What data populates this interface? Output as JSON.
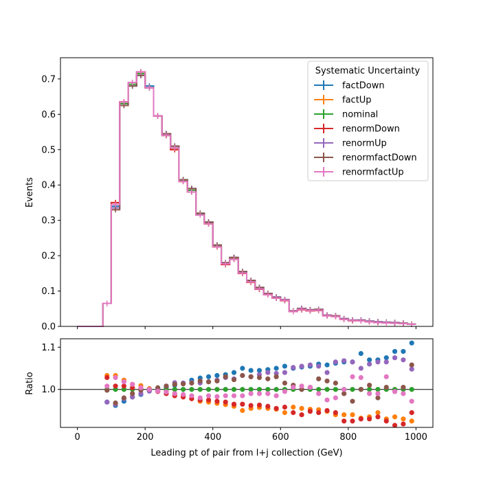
{
  "chart_data": [
    {
      "type": "line",
      "drawstyle": "steps",
      "xlim": [
        -50,
        1050
      ],
      "ylim": [
        0,
        0.76
      ],
      "ylabel": "Events",
      "yticks": [
        0.0,
        0.1,
        0.2,
        0.3,
        0.4,
        0.5,
        0.6,
        0.7
      ],
      "ytick_labels": [
        "0.0",
        "0.1",
        "0.2",
        "0.3",
        "0.4",
        "0.5",
        "0.6",
        "0.7"
      ],
      "xticks": [
        0,
        200,
        400,
        600,
        800,
        1000
      ],
      "x_edges": [
        0,
        25,
        50,
        75,
        100,
        125,
        150,
        175,
        200,
        225,
        250,
        275,
        300,
        325,
        350,
        375,
        400,
        425,
        450,
        475,
        500,
        525,
        550,
        575,
        600,
        625,
        650,
        675,
        700,
        725,
        750,
        775,
        800,
        825,
        850,
        875,
        900,
        925,
        950,
        975,
        1000
      ],
      "legend": {
        "title": "Systematic Uncertainty",
        "placement": "top-right",
        "entries": [
          "factDown",
          "factUp",
          "nominal",
          "renormDown",
          "renormUp",
          "renormfactDown",
          "renormfactUp"
        ]
      },
      "series": [
        {
          "name": "factDown",
          "color": "#1f77b4",
          "values": [
            0,
            0,
            0,
            0.065,
            0.34,
            0.63,
            0.68,
            0.71,
            0.68,
            0.595,
            0.545,
            0.51,
            0.415,
            0.39,
            0.32,
            0.295,
            0.23,
            0.18,
            0.195,
            0.155,
            0.13,
            0.11,
            0.093,
            0.083,
            0.075,
            0.043,
            0.05,
            0.047,
            0.048,
            0.032,
            0.03,
            0.022,
            0.018,
            0.018,
            0.015,
            0.013,
            0.012,
            0.011,
            0.009,
            0.006
          ]
        },
        {
          "name": "factUp",
          "color": "#ff7f0e",
          "values": [
            0,
            0,
            0,
            0.065,
            0.35,
            0.635,
            0.69,
            0.72,
            0.675,
            0.595,
            0.54,
            0.5,
            0.41,
            0.38,
            0.315,
            0.29,
            0.225,
            0.175,
            0.19,
            0.15,
            0.125,
            0.105,
            0.09,
            0.08,
            0.074,
            0.043,
            0.048,
            0.045,
            0.046,
            0.031,
            0.028,
            0.021,
            0.017,
            0.017,
            0.014,
            0.012,
            0.011,
            0.01,
            0.008,
            0.006
          ]
        },
        {
          "name": "nominal",
          "color": "#2ca02c",
          "values": [
            0,
            0,
            0,
            0.065,
            0.345,
            0.63,
            0.685,
            0.715,
            0.675,
            0.595,
            0.54,
            0.505,
            0.412,
            0.385,
            0.318,
            0.292,
            0.228,
            0.178,
            0.192,
            0.152,
            0.127,
            0.107,
            0.091,
            0.081,
            0.075,
            0.043,
            0.049,
            0.046,
            0.047,
            0.031,
            0.029,
            0.021,
            0.017,
            0.017,
            0.014,
            0.012,
            0.011,
            0.01,
            0.009,
            0.006
          ]
        },
        {
          "name": "renormDown",
          "color": "#d62728",
          "values": [
            0,
            0,
            0,
            0.065,
            0.35,
            0.635,
            0.69,
            0.72,
            0.675,
            0.595,
            0.54,
            0.5,
            0.41,
            0.38,
            0.315,
            0.29,
            0.225,
            0.175,
            0.19,
            0.15,
            0.125,
            0.105,
            0.09,
            0.08,
            0.073,
            0.042,
            0.047,
            0.044,
            0.045,
            0.03,
            0.028,
            0.02,
            0.016,
            0.016,
            0.013,
            0.011,
            0.01,
            0.009,
            0.008,
            0.006
          ]
        },
        {
          "name": "renormUp",
          "color": "#9467bd",
          "values": [
            0,
            0,
            0,
            0.065,
            0.335,
            0.625,
            0.68,
            0.71,
            0.675,
            0.595,
            0.545,
            0.51,
            0.415,
            0.39,
            0.32,
            0.295,
            0.23,
            0.18,
            0.195,
            0.155,
            0.13,
            0.11,
            0.093,
            0.083,
            0.076,
            0.044,
            0.051,
            0.047,
            0.048,
            0.032,
            0.03,
            0.022,
            0.018,
            0.018,
            0.015,
            0.013,
            0.012,
            0.011,
            0.009,
            0.006
          ]
        },
        {
          "name": "renormfactDown",
          "color": "#8c564b",
          "values": [
            0,
            0,
            0,
            0.065,
            0.33,
            0.625,
            0.68,
            0.71,
            0.675,
            0.595,
            0.545,
            0.51,
            0.415,
            0.39,
            0.32,
            0.295,
            0.23,
            0.18,
            0.195,
            0.155,
            0.13,
            0.11,
            0.093,
            0.082,
            0.075,
            0.044,
            0.05,
            0.047,
            0.048,
            0.031,
            0.03,
            0.021,
            0.017,
            0.017,
            0.014,
            0.012,
            0.011,
            0.01,
            0.009,
            0.006
          ]
        },
        {
          "name": "renormfactUp",
          "color": "#e377c2",
          "values": [
            0,
            0,
            0,
            0.065,
            0.345,
            0.635,
            0.69,
            0.72,
            0.675,
            0.595,
            0.54,
            0.505,
            0.41,
            0.38,
            0.315,
            0.29,
            0.225,
            0.177,
            0.19,
            0.151,
            0.126,
            0.106,
            0.09,
            0.08,
            0.074,
            0.042,
            0.048,
            0.045,
            0.046,
            0.03,
            0.028,
            0.02,
            0.017,
            0.016,
            0.013,
            0.011,
            0.01,
            0.009,
            0.008,
            0.006
          ]
        }
      ]
    },
    {
      "type": "scatter",
      "xlim": [
        -50,
        1050
      ],
      "ylim": [
        0.91,
        1.12
      ],
      "xlabel": "Leading pt of pair from l+j collection (GeV)",
      "ylabel": "Ratio",
      "yticks": [
        1.0,
        1.1
      ],
      "ytick_labels": [
        "1.0",
        "1.1"
      ],
      "xticks": [
        0,
        200,
        400,
        600,
        800,
        1000
      ],
      "xtick_labels": [
        "0",
        "200",
        "400",
        "600",
        "800",
        "1000"
      ],
      "reference_line": 1.0,
      "x": [
        87.5,
        112.5,
        137.5,
        162.5,
        187.5,
        212.5,
        237.5,
        262.5,
        287.5,
        312.5,
        337.5,
        362.5,
        387.5,
        412.5,
        437.5,
        462.5,
        487.5,
        512.5,
        537.5,
        562.5,
        587.5,
        612.5,
        637.5,
        662.5,
        687.5,
        712.5,
        737.5,
        762.5,
        787.5,
        812.5,
        837.5,
        862.5,
        887.5,
        912.5,
        937.5,
        962.5,
        987.5
      ],
      "series": [
        {
          "name": "factDown",
          "color": "#1f77b4",
          "values": [
            0.97,
            0.962,
            0.972,
            0.982,
            0.988,
            0.996,
            1.0,
            1.005,
            1.01,
            1.015,
            1.022,
            1.027,
            1.03,
            1.033,
            1.035,
            1.04,
            1.05,
            1.045,
            1.045,
            1.047,
            1.05,
            1.055,
            1.05,
            1.053,
            1.055,
            1.06,
            1.058,
            1.062,
            1.065,
            1.065,
            1.085,
            1.07,
            1.07,
            1.075,
            1.09,
            1.09,
            1.11
          ]
        },
        {
          "name": "factUp",
          "color": "#ff7f0e",
          "values": [
            1.033,
            1.033,
            1.022,
            1.012,
            1.009,
            1.002,
            0.998,
            0.995,
            0.99,
            0.985,
            0.978,
            0.972,
            0.97,
            0.967,
            0.964,
            0.96,
            0.95,
            0.955,
            0.957,
            0.955,
            0.953,
            0.945,
            0.958,
            0.955,
            0.953,
            0.952,
            0.948,
            0.94,
            0.94,
            0.94,
            0.932,
            0.935,
            0.945,
            0.93,
            0.935,
            0.93,
            0.925
          ]
        },
        {
          "name": "nominal",
          "color": "#2ca02c",
          "values": [
            1,
            1,
            1,
            1,
            1,
            1,
            1,
            1,
            1,
            1,
            1,
            1,
            1,
            1,
            1,
            1,
            1,
            1,
            1,
            1,
            1,
            1,
            1,
            1,
            1,
            1,
            1,
            1,
            1,
            1,
            1,
            1,
            1,
            1,
            1,
            1,
            1
          ]
        },
        {
          "name": "renormDown",
          "color": "#d62728",
          "values": [
            1.028,
            1.008,
            1.008,
            1.004,
            1.002,
            0.998,
            0.995,
            0.99,
            0.985,
            0.982,
            0.978,
            0.975,
            0.975,
            0.972,
            0.97,
            0.965,
            0.965,
            0.962,
            0.963,
            0.96,
            0.955,
            0.958,
            0.945,
            0.94,
            0.948,
            0.945,
            0.95,
            0.945,
            0.925,
            0.925,
            0.93,
            0.93,
            0.935,
            0.925,
            0.915,
            0.918,
            0.945
          ]
        },
        {
          "name": "renormUp",
          "color": "#9467bd",
          "values": [
            0.97,
            0.965,
            0.978,
            0.982,
            0.99,
            0.996,
            1.0,
            1.008,
            1.016,
            1.015,
            1.016,
            1.015,
            1.018,
            1.022,
            1.028,
            1.025,
            1.033,
            1.03,
            1.035,
            1.04,
            1.038,
            1.04,
            1.052,
            1.055,
            1.058,
            1.055,
            1.04,
            1.065,
            1.068,
            1.065,
            1.05,
            1.06,
            1.065,
            1.065,
            1.075,
            1.07,
            1.048
          ]
        },
        {
          "name": "renormfactDown",
          "color": "#8c564b",
          "values": [
            0.998,
            0.968,
            0.98,
            0.99,
            0.998,
            1.0,
            1.004,
            1.008,
            1.012,
            1.013,
            1.015,
            1.02,
            1.018,
            1.02,
            1.03,
            1.023,
            1.033,
            1.03,
            1.028,
            1.025,
            1.03,
            1.015,
            1.01,
            1.0,
            1.005,
            1.025,
            1.02,
            1.015,
            0.99,
            0.972,
            1.0,
            1.01,
            0.98,
            1.005,
            0.995,
            1.005,
            1.058
          ]
        },
        {
          "name": "renormfactUp",
          "color": "#e377c2",
          "values": [
            1.008,
            1.028,
            1.018,
            1.012,
            1.004,
            1.0,
            0.996,
            0.994,
            0.99,
            0.988,
            0.985,
            0.98,
            0.985,
            0.983,
            0.985,
            0.985,
            0.985,
            0.99,
            0.99,
            0.99,
            0.985,
            0.995,
            1.005,
            1.008,
            1.005,
            0.99,
            0.975,
            0.98,
            1.0,
            1.03,
            1.028,
            0.99,
            0.99,
            1.03,
            0.995,
            0.99,
            0.972
          ]
        }
      ]
    }
  ]
}
